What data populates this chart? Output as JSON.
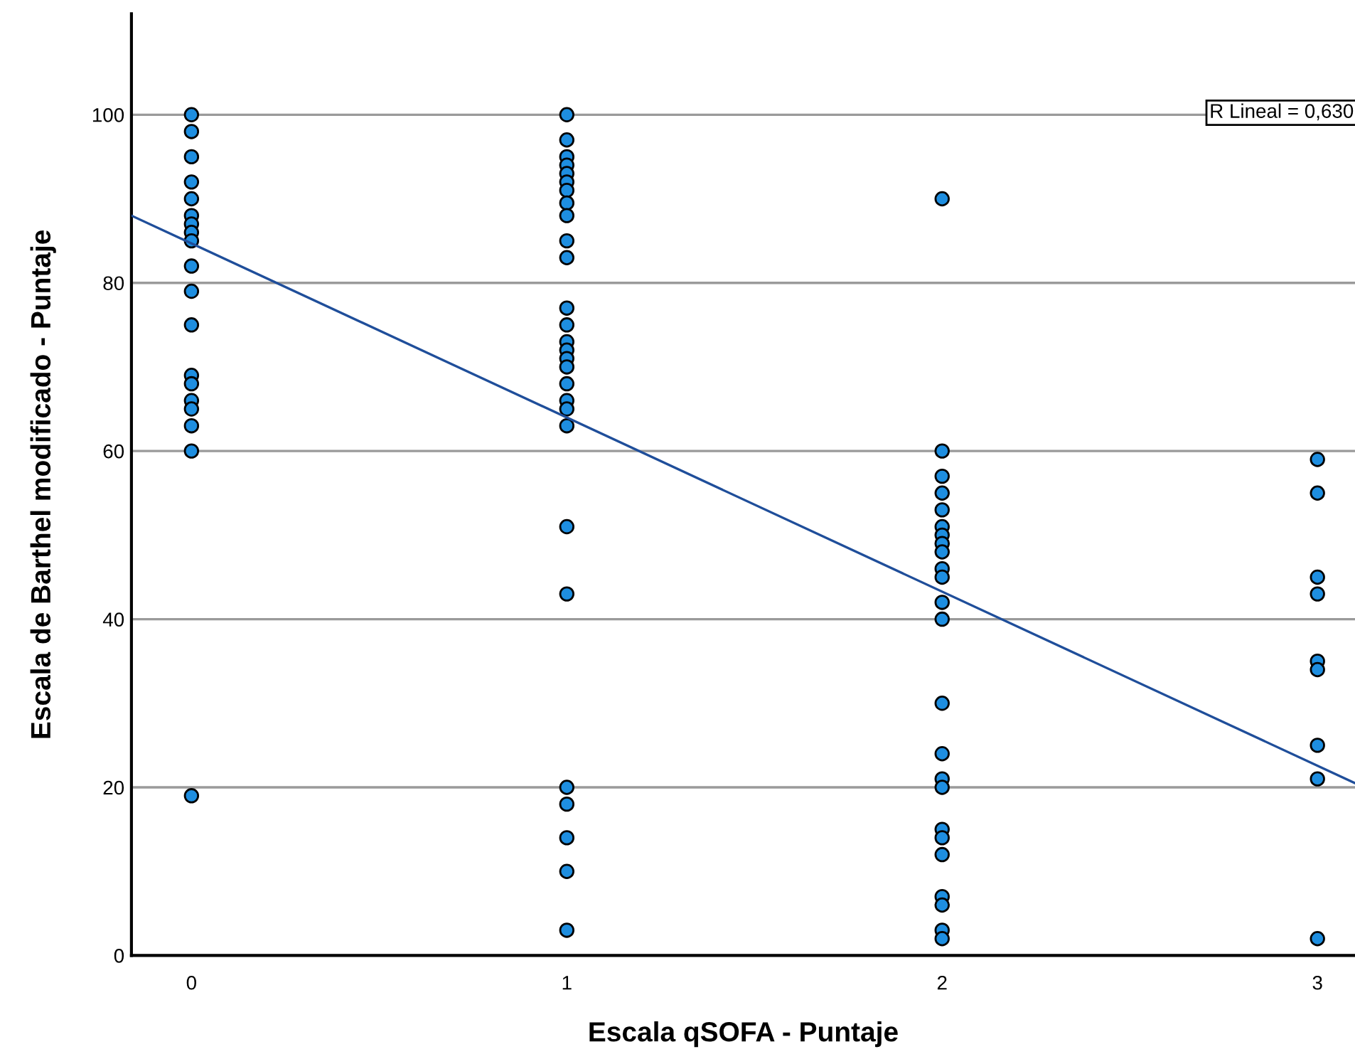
{
  "chart_data": {
    "type": "scatter",
    "xlabel": "Escala qSOFA - Puntaje",
    "ylabel": "Escala de Barthel modificado - Puntaje",
    "xlim": [
      -0.16,
      3.1
    ],
    "xticks": [
      0,
      1,
      2,
      3
    ],
    "ylim": [
      0,
      112
    ],
    "yticks": [
      0,
      20,
      40,
      60,
      80,
      100
    ],
    "grid": "y",
    "legend": false,
    "marker": "circle",
    "annotations": [
      "R Lineal = 0,630"
    ],
    "series": [
      {
        "color": "#1e8ee0",
        "x": [
          0,
          0,
          0,
          0,
          0,
          0,
          0,
          0,
          0,
          0,
          0,
          0,
          0,
          0,
          0,
          0,
          0,
          0,
          0,
          1,
          1,
          1,
          1,
          1,
          1,
          1,
          1,
          1,
          1,
          1,
          1,
          1,
          1,
          1,
          1,
          1,
          1,
          1,
          1,
          1,
          1,
          1,
          1,
          1,
          1,
          1,
          1,
          2,
          2,
          2,
          2,
          2,
          2,
          2,
          2,
          2,
          2,
          2,
          2,
          2,
          2,
          2,
          2,
          2,
          2,
          2,
          2,
          2,
          2,
          2,
          2,
          3,
          3,
          3,
          3,
          3,
          3,
          3,
          3,
          3
        ],
        "values": [
          100,
          98,
          95,
          92,
          90,
          88,
          87,
          86,
          85,
          82,
          79,
          75,
          69,
          68,
          66,
          65,
          63,
          60,
          19,
          100,
          97,
          95,
          94,
          93,
          92,
          91,
          89.5,
          88,
          85,
          83,
          77,
          75,
          73,
          72,
          71,
          70,
          68,
          66,
          65,
          63,
          51,
          43,
          20,
          18,
          14,
          10,
          3,
          90,
          60,
          57,
          55,
          53,
          51,
          50,
          49,
          48,
          46,
          45,
          42,
          40,
          30,
          24,
          21,
          20,
          15,
          14,
          12,
          7,
          6,
          3,
          2,
          59,
          55,
          45,
          43,
          35,
          34,
          25,
          21,
          2
        ]
      },
      {
        "type": "line",
        "color": "#1f4e9a",
        "line_style": "solid",
        "marker": "none",
        "x": [
          -0.16,
          3.1
        ],
        "values": [
          88,
          20.5
        ]
      }
    ]
  }
}
